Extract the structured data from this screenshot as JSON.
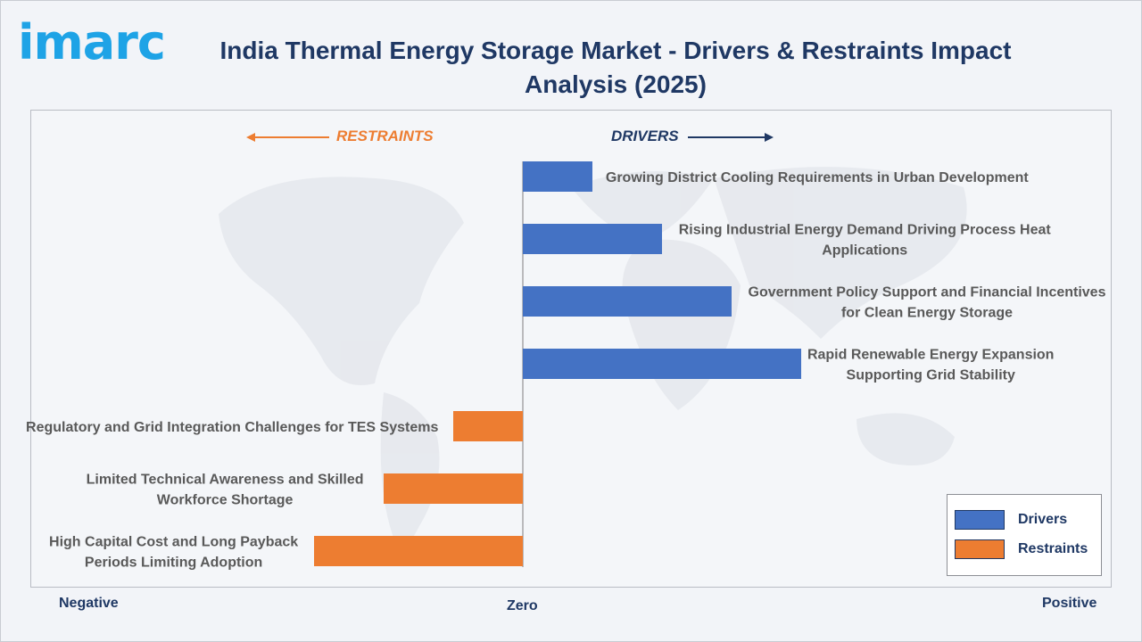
{
  "logo": {
    "text": "imarc"
  },
  "title": "India Thermal Energy Storage Market - Drivers & Restraints Impact Analysis (2025)",
  "direction_labels": {
    "restraints": "RESTRAINTS",
    "drivers": "DRIVERS"
  },
  "axis_labels": {
    "negative": "Negative",
    "zero": "Zero",
    "positive": "Positive"
  },
  "legend": [
    {
      "label": "Drivers",
      "color": "#4472c4"
    },
    {
      "label": "Restraints",
      "color": "#ed7d31"
    }
  ],
  "colors": {
    "drivers": "#4472c4",
    "restraints": "#ed7d31",
    "title": "#1f3864",
    "logo": "#1ea3e6"
  },
  "chart_data": {
    "type": "bar",
    "orientation": "horizontal",
    "title": "India Thermal Energy Storage Market - Drivers & Restraints Impact Analysis (2025)",
    "xlim": [
      -3,
      4
    ],
    "categories": [
      [
        "Growing District Cooling Requirements in Urban Development"
      ],
      [
        "Rising Industrial Energy Demand Driving Process Heat",
        "Applications"
      ],
      [
        "Government Policy Support and Financial Incentives",
        "for Clean Energy Storage"
      ],
      [
        "Rapid Renewable Energy Expansion",
        "Supporting Grid Stability"
      ],
      [
        "Regulatory and Grid Integration Challenges for TES Systems"
      ],
      [
        "Limited Technical Awareness and Skilled",
        "Workforce Shortage"
      ],
      [
        "High Capital Cost and Long Payback",
        "Periods Limiting Adoption"
      ]
    ],
    "series": [
      {
        "name": "Drivers",
        "values": [
          1,
          2,
          3,
          4,
          null,
          null,
          null
        ]
      },
      {
        "name": "Restraints",
        "values": [
          null,
          null,
          null,
          null,
          -1,
          -2,
          -3
        ]
      }
    ],
    "grid": false,
    "legend_position": "bottom-right"
  }
}
